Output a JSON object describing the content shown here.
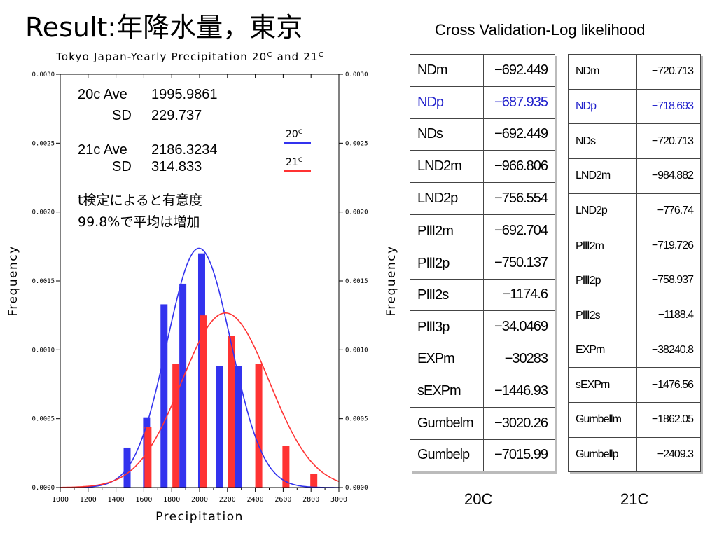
{
  "slide": {
    "title": "Result:年降水量，東京",
    "cv_title": "Cross Validation-Log likelihood"
  },
  "chart_data": {
    "type": "bar",
    "title": "Tokyo Japan-Yearly Precipitation 20",
    "title_sup1": "C",
    "title_mid": " and 21",
    "title_sup2": "C",
    "xlabel": "Precipitation",
    "ylabel": "Frequency",
    "xlim": [
      1000,
      3000
    ],
    "ylim": [
      0,
      0.003
    ],
    "x_ticks": [
      "1000",
      "1200",
      "1400",
      "1600",
      "1800",
      "2000",
      "2200",
      "2400",
      "2600",
      "2800",
      "3000"
    ],
    "y_ticks": [
      "0.0000",
      "0.0005",
      "0.0010",
      "0.0015",
      "0.0020",
      "0.0025",
      "0.0030"
    ],
    "y_tick_values": [
      0,
      0.0005,
      0.001,
      0.0015,
      0.002,
      0.0025,
      0.003
    ],
    "series": [
      {
        "name": "20C",
        "color": "#3333ee",
        "bars": [
          {
            "x": 1480,
            "y": 0.00029
          },
          {
            "x": 1620,
            "y": 0.00051
          },
          {
            "x": 1745,
            "y": 0.00133
          },
          {
            "x": 1880,
            "y": 0.00148
          },
          {
            "x": 2015,
            "y": 0.0017
          },
          {
            "x": 2145,
            "y": 0.00088
          },
          {
            "x": 2280,
            "y": 0.00088
          }
        ],
        "mean": 1995.9861,
        "sd": 229.737
      },
      {
        "name": "21C",
        "color": "#ff3333",
        "bars": [
          {
            "x": 1630,
            "y": 0.00044
          },
          {
            "x": 1830,
            "y": 0.0009
          },
          {
            "x": 2030,
            "y": 0.00125
          },
          {
            "x": 2230,
            "y": 0.0011
          },
          {
            "x": 2425,
            "y": 0.0009
          },
          {
            "x": 2620,
            "y": 0.0003
          },
          {
            "x": 2820,
            "y": 0.0001
          }
        ],
        "mean": 2186.3234,
        "sd": 314.833
      }
    ],
    "legend": [
      {
        "label": "20",
        "sup": "C",
        "color": "#3333ee"
      },
      {
        "label": "21",
        "sup": "C",
        "color": "#ff3333"
      }
    ],
    "annotations": {
      "line1_label": "20c Ave",
      "line1_value": "1995.9861",
      "line2_label": "SD",
      "line2_value": "229.737",
      "line3_label": "21c Ave",
      "line3_value": "2186.3234",
      "line4_label": "SD",
      "line4_value": "314.833",
      "note1": "t検定によると有意度",
      "note2": "99.8%で平均は増加"
    }
  },
  "tables": {
    "t20": {
      "caption": "20C",
      "rows": [
        {
          "name": "NDm",
          "value": "−692.449",
          "highlight": false
        },
        {
          "name": "NDp",
          "value": "−687.935",
          "highlight": true
        },
        {
          "name": "NDs",
          "value": "−692.449",
          "highlight": false
        },
        {
          "name": "LND2m",
          "value": "−966.806",
          "highlight": false
        },
        {
          "name": "LND2p",
          "value": "−756.554",
          "highlight": false
        },
        {
          "name": "PⅢ2m",
          "value": "−692.704",
          "highlight": false
        },
        {
          "name": "PⅢ2p",
          "value": "−750.137",
          "highlight": false
        },
        {
          "name": "PⅢ2s",
          "value": "−1174.6",
          "highlight": false
        },
        {
          "name": "PⅢ3p",
          "value": "−34.0469",
          "highlight": false
        },
        {
          "name": "EXPm",
          "value": "−30283",
          "highlight": false
        },
        {
          "name": "sEXPm",
          "value": "−1446.93",
          "highlight": false
        },
        {
          "name": "Gumbelm",
          "value": "−3020.26",
          "highlight": false
        },
        {
          "name": "Gumbelp",
          "value": "−7015.99",
          "highlight": false
        }
      ]
    },
    "t21": {
      "caption": "21C",
      "rows": [
        {
          "name": "NDm",
          "value": "−720.713",
          "highlight": false
        },
        {
          "name": "NDp",
          "value": "−718.693",
          "highlight": true
        },
        {
          "name": "NDs",
          "value": "−720.713",
          "highlight": false
        },
        {
          "name": "LND2m",
          "value": "−984.882",
          "highlight": false
        },
        {
          "name": "LND2p",
          "value": "−776.74",
          "highlight": false
        },
        {
          "name": "PⅢ2m",
          "value": "−719.726",
          "highlight": false
        },
        {
          "name": "PⅢ2p",
          "value": "−758.937",
          "highlight": false
        },
        {
          "name": "PⅢ2s",
          "value": "−1188.4",
          "highlight": false
        },
        {
          "name": "EXPm",
          "value": "−38240.8",
          "highlight": false
        },
        {
          "name": "sEXPm",
          "value": "−1476.56",
          "highlight": false
        },
        {
          "name": "Gumbellm",
          "value": "−1862.05",
          "highlight": false
        },
        {
          "name": "Gumbellp",
          "value": "−2409.3",
          "highlight": false
        }
      ]
    }
  }
}
